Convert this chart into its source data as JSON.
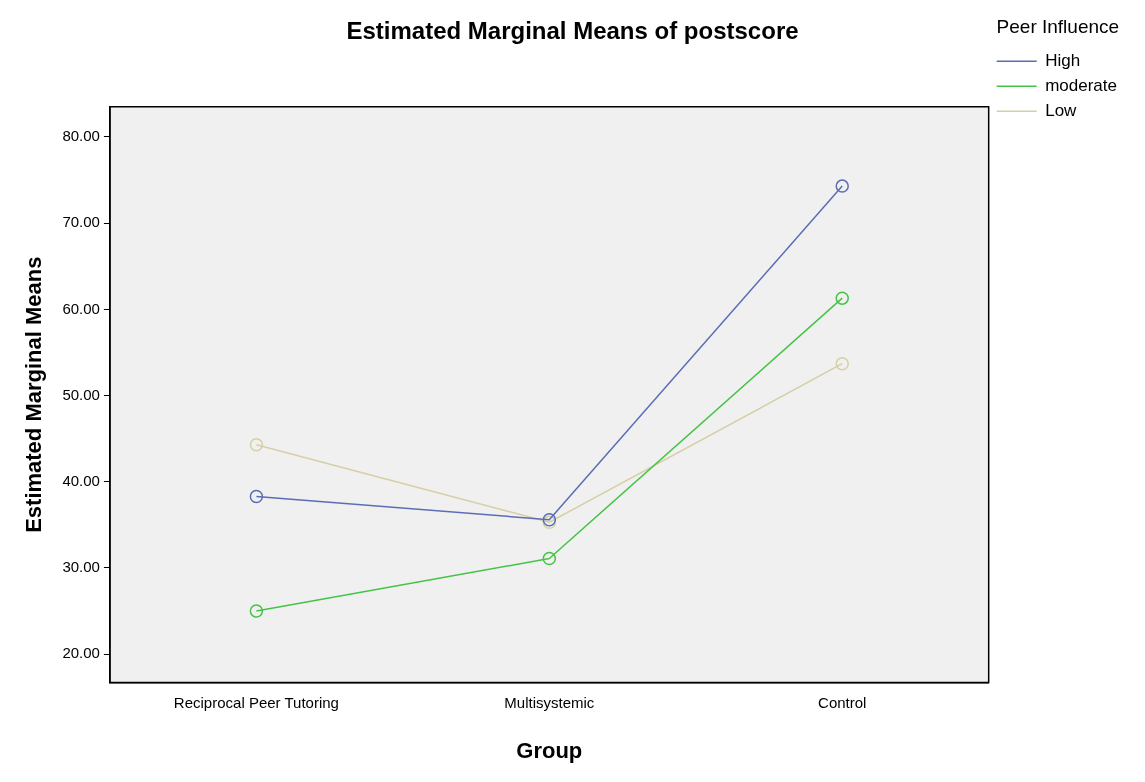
{
  "chart_data": {
    "type": "line",
    "title": "Estimated Marginal Means of postscore",
    "xlabel": "Group",
    "ylabel": "Estimated Marginal Means",
    "legend_title": "Peer Influence",
    "categories": [
      "Reciprocal Peer Tutoring",
      "Multisystemic",
      "Control"
    ],
    "series": [
      {
        "name": "High",
        "color": "#5b6db5",
        "values": [
          38.3,
          35.6,
          74.3
        ]
      },
      {
        "name": "moderate",
        "color": "#44c444",
        "values": [
          25.0,
          31.1,
          61.3
        ]
      },
      {
        "name": "Low",
        "color": "#d6cfa5",
        "values": [
          44.3,
          35.3,
          53.7
        ]
      }
    ],
    "ylim": [
      16.7,
      83.5
    ],
    "yticks": [
      {
        "value": 20,
        "label": "20.00"
      },
      {
        "value": 30,
        "label": "30.00"
      },
      {
        "value": 40,
        "label": "40.00"
      },
      {
        "value": 50,
        "label": "50.00"
      },
      {
        "value": 60,
        "label": "60.00"
      },
      {
        "value": 70,
        "label": "70.00"
      },
      {
        "value": 80,
        "label": "80.00"
      }
    ],
    "grid": false,
    "legend": "top right",
    "marker": "circle",
    "line_style": "solid"
  }
}
